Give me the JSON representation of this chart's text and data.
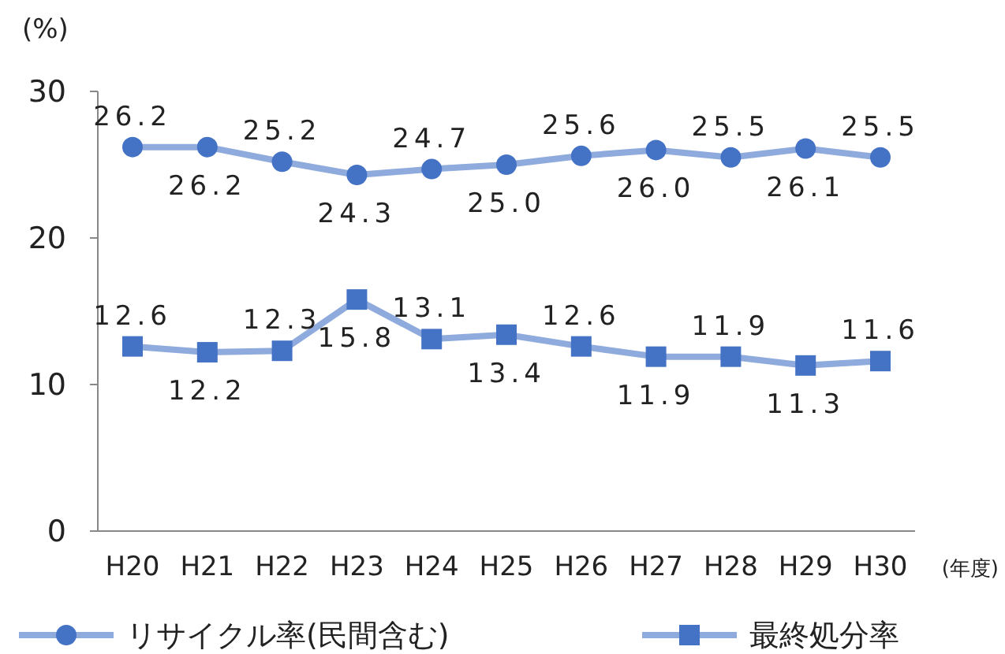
{
  "chart_data": {
    "type": "line",
    "ylabel": "(%)",
    "xlabel": "(年度)",
    "categories": [
      "H20",
      "H21",
      "H22",
      "H23",
      "H24",
      "H25",
      "H26",
      "H27",
      "H28",
      "H29",
      "H30"
    ],
    "series": [
      {
        "name": "リサイクル率(民間含む)",
        "color": "#4472c4",
        "marker": "circle",
        "values": [
          26.2,
          26.2,
          25.2,
          24.3,
          24.7,
          25.0,
          25.6,
          26.0,
          25.5,
          26.1,
          25.5
        ],
        "value_labels": [
          "26.2",
          "26.2",
          "25.2",
          "24.3",
          "24.7",
          "25.0",
          "25.6",
          "26.0",
          "25.5",
          "26.1",
          "25.5"
        ]
      },
      {
        "name": "最終処分率",
        "color": "#4472c4",
        "marker": "square",
        "values": [
          12.6,
          12.2,
          12.3,
          15.8,
          13.1,
          13.4,
          12.6,
          11.9,
          11.9,
          11.3,
          11.6
        ],
        "value_labels": [
          "12.6",
          "12.2",
          "12.3",
          "15.8",
          "13.1",
          "13.4",
          "12.6",
          "11.9",
          "11.9",
          "11.3",
          "11.6"
        ]
      }
    ],
    "ylim": [
      0,
      30
    ],
    "yticks": [
      0,
      10,
      20,
      30
    ],
    "legend": "bottom",
    "grid": false
  }
}
